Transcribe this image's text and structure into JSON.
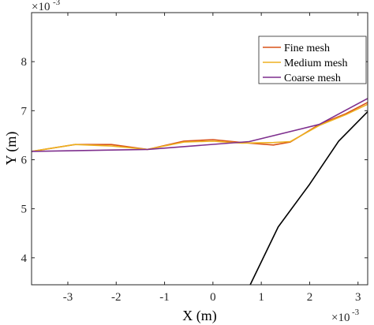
{
  "chart_data": {
    "type": "line",
    "title": "",
    "xlabel": "X (m)",
    "ylabel": "Y (m)",
    "x_exponent_label": "×10",
    "x_exponent_power": "-3",
    "y_exponent_label": "×10",
    "y_exponent_power": "-3",
    "xlim": [
      -3.75,
      3.2
    ],
    "ylim": [
      3.45,
      9.0
    ],
    "x_ticks": [
      -3,
      -2,
      -1,
      0,
      1,
      2,
      3
    ],
    "y_ticks": [
      4,
      5,
      6,
      7,
      8
    ],
    "x_tick_labels": [
      "-3",
      "-2",
      "-1",
      "0",
      "1",
      "2",
      "3"
    ],
    "y_tick_labels": [
      "4",
      "5",
      "6",
      "7",
      "8"
    ],
    "grid": false,
    "legend_position": "top-right",
    "series": [
      {
        "name": "Fine mesh",
        "color": "#D95319",
        "in_legend": true,
        "x": [
          -3.75,
          -2.85,
          -2.1,
          -1.35,
          -0.6,
          0.0,
          0.6,
          1.25,
          1.6,
          2.2,
          2.75,
          3.2
        ],
        "y": [
          6.17,
          6.31,
          6.31,
          6.21,
          6.38,
          6.41,
          6.35,
          6.3,
          6.36,
          6.72,
          6.94,
          7.17
        ]
      },
      {
        "name": "Medium mesh",
        "color": "#EDB120",
        "in_legend": true,
        "x": [
          -3.75,
          -2.85,
          -2.1,
          -1.35,
          -0.6,
          0.0,
          0.6,
          1.25,
          1.6,
          2.2,
          2.75,
          3.2
        ],
        "y": [
          6.17,
          6.31,
          6.28,
          6.21,
          6.36,
          6.38,
          6.34,
          6.35,
          6.37,
          6.7,
          6.92,
          7.13
        ]
      },
      {
        "name": "Coarse mesh",
        "color": "#7E2F8E",
        "in_legend": true,
        "x": [
          -3.75,
          -1.35,
          0.75,
          2.2,
          3.2
        ],
        "y": [
          6.17,
          6.21,
          6.37,
          6.72,
          7.25
        ]
      },
      {
        "name": "",
        "color": "#000000",
        "in_legend": false,
        "x": [
          0.77,
          1.35,
          2.0,
          2.6,
          3.2
        ],
        "y": [
          3.45,
          4.63,
          5.5,
          6.38,
          6.98
        ]
      }
    ]
  }
}
